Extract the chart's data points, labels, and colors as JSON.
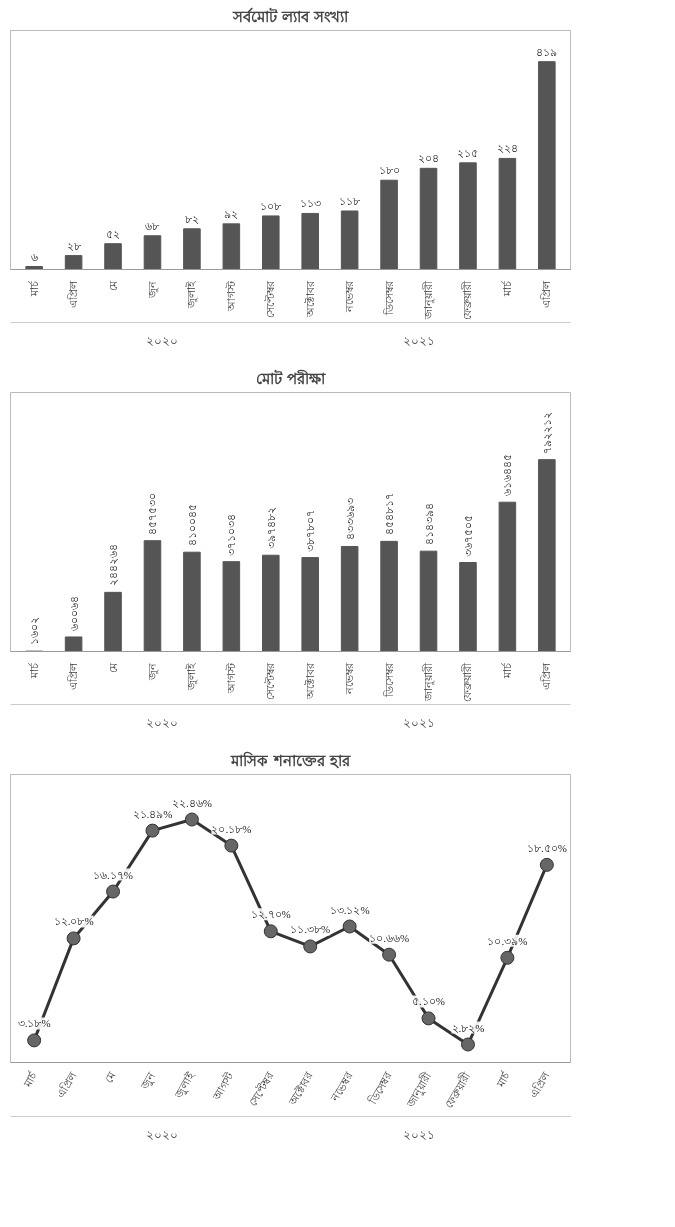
{
  "chart_data": [
    {
      "type": "bar",
      "title": "সর্বমোট ল্যাব সংখ্যা",
      "color": "#555555",
      "categories": [
        "মার্চ",
        "এপ্রিল",
        "মে",
        "জুন",
        "জুলাই",
        "আগস্ট",
        "সেপ্টেম্বর",
        "অক্টোবর",
        "নভেম্বর",
        "ডিসেম্বর",
        "জানুয়ারী",
        "ফেব্রুয়ারী",
        "মার্চ",
        "এপ্রিল"
      ],
      "values": [
        6,
        28,
        52,
        68,
        82,
        92,
        108,
        113,
        118,
        180,
        204,
        215,
        224,
        419
      ],
      "value_labels": [
        "৬",
        "২৮",
        "৫২",
        "৬৮",
        "৮২",
        "৯২",
        "১০৮",
        "১১৩",
        "১১৮",
        "১৮০",
        "২০৪",
        "২১৫",
        "২২৪",
        "৪১৯"
      ],
      "annotations": [
        "২০২০",
        "২০২১"
      ]
    },
    {
      "type": "bar",
      "title": "মোট পরীক্ষা",
      "color": "#555555",
      "categories": [
        "মার্চ",
        "এপ্রিল",
        "মে",
        "জুন",
        "জুলাই",
        "আগস্ট",
        "সেপ্টেম্বর",
        "অক্টোবর",
        "নভেম্বর",
        "ডিসেম্বর",
        "জানুয়ারী",
        "ফেব্রুয়ারী",
        "মার্চ",
        "এপ্রিল"
      ],
      "values": [
        1602,
        60064,
        244264,
        457530,
        410045,
        371034,
        397482,
        387807,
        433693,
        454817,
        414394,
        367505,
        616445,
        792212
      ],
      "value_labels": [
        "১৬০২",
        "৬০০৬৪",
        "২৪৪২৬৪",
        "৪৫৭৫৩০",
        "৪১০০৪৫",
        "৩৭১০৩৪",
        "৩৯৭৪৮২",
        "৩৮৭৮০৭",
        "৪৩৩৬৯৩",
        "৪৫৪৮১৭",
        "৪১৪৩৯৪",
        "৩৬৭৫০৫",
        "৬১৬৪৪৫",
        "৭৯২২১২"
      ],
      "annotations": [
        "২০২০",
        "২০২১"
      ]
    },
    {
      "type": "line",
      "title": "মাসিক শনাক্তের হার",
      "color": "#333333",
      "marker": "circle",
      "categories": [
        "মার্চ",
        "এপ্রিল",
        "মে",
        "জুন",
        "জুলাই",
        "আগস্ট",
        "সেপ্টেম্বর",
        "অক্টোবর",
        "নভেম্বর",
        "ডিসেম্বর",
        "জানুয়ারী",
        "ফেব্রুয়ারী",
        "মার্চ",
        "এপ্রিল"
      ],
      "values": [
        3.18,
        12.08,
        16.17,
        21.49,
        22.46,
        20.18,
        12.7,
        11.38,
        13.12,
        10.66,
        5.1,
        2.82,
        10.39,
        18.5
      ],
      "value_labels": [
        "৩.১৮%",
        "১২.০৮%",
        "১৬.১৭%",
        "২১.৪৯%",
        "২২.৪৬%",
        "২০.১৮%",
        "১২.৭০%",
        "১১.৩৮%",
        "১৩.১২%",
        "১০.৬৬%",
        "৫.১০%",
        "২.৮২%",
        "১০.৩৯%",
        "১৮.৫০%"
      ],
      "annotations": [
        "২০২০",
        "২০২১"
      ]
    }
  ]
}
